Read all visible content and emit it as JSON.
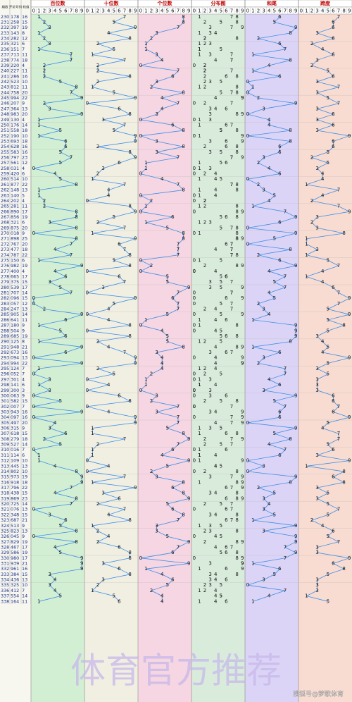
{
  "headers": {
    "issue": "期数",
    "draw": "开奖号码",
    "sum": "和值",
    "groups": [
      "百位数",
      "十位数",
      "个位数",
      "分布图",
      "和尾",
      "跨度"
    ]
  },
  "digits": [
    0,
    1,
    2,
    3,
    4,
    5,
    6,
    7,
    8,
    9
  ],
  "watermark": "体育官方推荐",
  "credit": "搜狐号@梦歌体育",
  "rows": [
    [
      230,
      "178",
      16,
      1,
      7,
      8,
      6,
      7
    ],
    [
      231,
      "258",
      15,
      2,
      5,
      8,
      5,
      6
    ],
    [
      232,
      "397",
      19,
      3,
      9,
      7,
      9,
      6
    ],
    [
      233,
      "143",
      8,
      1,
      4,
      3,
      8,
      3
    ],
    [
      234,
      "282",
      12,
      2,
      8,
      2,
      2,
      6
    ],
    [
      235,
      "321",
      6,
      3,
      2,
      1,
      6,
      2
    ],
    [
      236,
      "151",
      7,
      1,
      5,
      1,
      7,
      4
    ],
    [
      237,
      "713",
      11,
      7,
      1,
      3,
      1,
      6
    ],
    [
      238,
      "774",
      18,
      7,
      7,
      4,
      8,
      3
    ],
    [
      239,
      "220",
      4,
      2,
      2,
      0,
      4,
      2
    ],
    [
      240,
      "227",
      11,
      2,
      2,
      7,
      1,
      5
    ],
    [
      241,
      "286",
      16,
      2,
      8,
      6,
      6,
      6
    ],
    [
      242,
      "523",
      10,
      5,
      2,
      3,
      0,
      3
    ],
    [
      243,
      "812",
      11,
      8,
      1,
      2,
      1,
      7
    ],
    [
      244,
      "758",
      20,
      7,
      5,
      8,
      0,
      3
    ],
    [
      245,
      "994",
      22,
      9,
      9,
      4,
      2,
      5
    ],
    [
      246,
      "207",
      9,
      2,
      0,
      7,
      9,
      7
    ],
    [
      247,
      "364",
      13,
      3,
      6,
      4,
      3,
      3
    ],
    [
      248,
      "983",
      20,
      9,
      8,
      3,
      0,
      6
    ],
    [
      249,
      "130",
      4,
      1,
      3,
      0,
      4,
      3
    ],
    [
      250,
      "176",
      14,
      1,
      7,
      6,
      4,
      6
    ],
    [
      251,
      "558",
      18,
      5,
      5,
      8,
      8,
      3
    ],
    [
      252,
      "190",
      10,
      1,
      9,
      0,
      0,
      9
    ],
    [
      253,
      "693",
      18,
      6,
      9,
      3,
      8,
      6
    ],
    [
      254,
      "628",
      16,
      6,
      2,
      8,
      6,
      6
    ],
    [
      255,
      "583",
      16,
      5,
      8,
      3,
      6,
      5
    ],
    [
      256,
      "797",
      23,
      7,
      9,
      7,
      3,
      2
    ],
    [
      257,
      "561",
      12,
      5,
      6,
      1,
      2,
      5
    ],
    [
      258,
      "031",
      4,
      0,
      3,
      1,
      4,
      3
    ],
    [
      259,
      "420",
      6,
      4,
      2,
      0,
      6,
      4
    ],
    [
      260,
      "514",
      10,
      5,
      1,
      4,
      0,
      4
    ],
    [
      261,
      "877",
      22,
      8,
      7,
      7,
      2,
      1
    ],
    [
      262,
      "148",
      13,
      1,
      4,
      8,
      3,
      7
    ],
    [
      263,
      "140",
      5,
      1,
      4,
      0,
      5,
      4
    ],
    [
      264,
      "202",
      4,
      2,
      0,
      2,
      4,
      2
    ],
    [
      265,
      "281",
      11,
      2,
      8,
      1,
      1,
      7
    ],
    [
      266,
      "890",
      17,
      8,
      9,
      0,
      7,
      9
    ],
    [
      267,
      "856",
      19,
      8,
      5,
      6,
      9,
      3
    ],
    [
      268,
      "321",
      6,
      3,
      2,
      1,
      6,
      2
    ],
    [
      269,
      "875",
      20,
      8,
      7,
      5,
      0,
      3
    ],
    [
      270,
      "018",
      9,
      0,
      1,
      8,
      9,
      8
    ],
    [
      271,
      "898",
      25,
      8,
      9,
      8,
      5,
      1
    ],
    [
      272,
      "767",
      20,
      7,
      6,
      7,
      0,
      1
    ],
    [
      273,
      "477",
      18,
      4,
      7,
      7,
      8,
      3
    ],
    [
      274,
      "787",
      22,
      7,
      8,
      7,
      2,
      1
    ],
    [
      275,
      "150",
      6,
      1,
      5,
      0,
      6,
      5
    ],
    [
      276,
      "982",
      19,
      9,
      8,
      2,
      9,
      7
    ],
    [
      277,
      "400",
      4,
      4,
      0,
      0,
      4,
      4
    ],
    [
      278,
      "665",
      17,
      6,
      6,
      5,
      7,
      1
    ],
    [
      279,
      "375",
      15,
      3,
      7,
      5,
      5,
      4
    ],
    [
      280,
      "539",
      17,
      5,
      3,
      9,
      7,
      6
    ],
    [
      281,
      "707",
      14,
      7,
      0,
      7,
      4,
      7
    ],
    [
      282,
      "096",
      15,
      0,
      9,
      6,
      5,
      9
    ],
    [
      283,
      "057",
      12,
      0,
      5,
      7,
      2,
      7
    ],
    [
      284,
      "247",
      13,
      2,
      4,
      7,
      3,
      5
    ],
    [
      285,
      "905",
      14,
      9,
      0,
      5,
      4,
      9
    ],
    [
      286,
      "641",
      11,
      6,
      4,
      1,
      1,
      5
    ],
    [
      287,
      "180",
      9,
      1,
      8,
      0,
      9,
      8
    ],
    [
      288,
      "504",
      9,
      5,
      0,
      4,
      9,
      5
    ],
    [
      289,
      "685",
      19,
      6,
      8,
      5,
      9,
      3
    ],
    [
      290,
      "125",
      8,
      1,
      2,
      5,
      8,
      4
    ],
    [
      291,
      "948",
      21,
      9,
      4,
      8,
      1,
      5
    ],
    [
      292,
      "673",
      16,
      6,
      7,
      3,
      6,
      4
    ],
    [
      293,
      "094",
      13,
      0,
      9,
      4,
      3,
      9
    ],
    [
      294,
      "994",
      22,
      9,
      9,
      4,
      2,
      5
    ],
    [
      295,
      "124",
      7,
      1,
      2,
      4,
      7,
      3
    ],
    [
      296,
      "052",
      7,
      0,
      5,
      2,
      7,
      5
    ],
    [
      297,
      "301",
      4,
      3,
      0,
      1,
      4,
      3
    ],
    [
      298,
      "141",
      6,
      1,
      4,
      1,
      6,
      3
    ],
    [
      299,
      "300",
      3,
      3,
      0,
      0,
      3,
      3
    ],
    [
      300,
      "063",
      9,
      0,
      6,
      3,
      9,
      6
    ],
    [
      301,
      "582",
      15,
      5,
      8,
      2,
      5,
      6
    ],
    [
      302,
      "007",
      7,
      0,
      0,
      7,
      7,
      7
    ],
    [
      303,
      "943",
      16,
      9,
      4,
      3,
      6,
      6
    ],
    [
      304,
      "097",
      16,
      0,
      9,
      7,
      6,
      9
    ],
    [
      305,
      "497",
      20,
      4,
      9,
      7,
      0,
      5
    ],
    [
      306,
      "315",
      9,
      3,
      1,
      5,
      9,
      4
    ],
    [
      307,
      "618",
      15,
      6,
      1,
      8,
      5,
      7
    ],
    [
      308,
      "279",
      18,
      2,
      7,
      9,
      8,
      7
    ],
    [
      309,
      "527",
      14,
      5,
      2,
      7,
      4,
      5
    ],
    [
      310,
      "016",
      7,
      0,
      1,
      6,
      7,
      6
    ],
    [
      311,
      "114",
      6,
      1,
      1,
      4,
      6,
      3
    ],
    [
      312,
      "109",
      10,
      1,
      0,
      9,
      0,
      9
    ],
    [
      313,
      "445",
      13,
      4,
      4,
      5,
      3,
      1
    ],
    [
      314,
      "802",
      10,
      8,
      0,
      2,
      0,
      8
    ],
    [
      315,
      "973",
      19,
      9,
      7,
      3,
      9,
      6
    ],
    [
      316,
      "918",
      18,
      9,
      1,
      8,
      8,
      8
    ],
    [
      317,
      "796",
      22,
      7,
      9,
      6,
      2,
      3
    ],
    [
      318,
      "438",
      15,
      4,
      3,
      8,
      5,
      5
    ],
    [
      319,
      "869",
      23,
      8,
      6,
      9,
      3,
      3
    ],
    [
      320,
      "725",
      14,
      7,
      2,
      5,
      4,
      5
    ],
    [
      321,
      "076",
      13,
      0,
      7,
      6,
      3,
      7
    ],
    [
      322,
      "348",
      15,
      3,
      4,
      8,
      5,
      5
    ],
    [
      323,
      "687",
      21,
      6,
      8,
      7,
      1,
      2
    ],
    [
      324,
      "513",
      9,
      5,
      1,
      3,
      9,
      4
    ],
    [
      325,
      "823",
      13,
      8,
      2,
      3,
      3,
      6
    ],
    [
      326,
      "045",
      9,
      0,
      4,
      5,
      9,
      5
    ],
    [
      327,
      "829",
      19,
      8,
      2,
      9,
      9,
      7
    ],
    [
      328,
      "467",
      17,
      4,
      6,
      7,
      7,
      3
    ],
    [
      329,
      "586",
      19,
      5,
      8,
      6,
      9,
      3
    ],
    [
      330,
      "980",
      17,
      9,
      8,
      0,
      7,
      9
    ],
    [
      331,
      "939",
      21,
      9,
      3,
      9,
      1,
      6
    ],
    [
      332,
      "961",
      16,
      9,
      6,
      1,
      6,
      8
    ],
    [
      333,
      "384",
      15,
      3,
      8,
      4,
      5,
      5
    ],
    [
      334,
      "436",
      13,
      4,
      3,
      6,
      3,
      3
    ],
    [
      335,
      "325",
      10,
      3,
      2,
      5,
      0,
      3
    ],
    [
      336,
      "412",
      7,
      4,
      1,
      2,
      7,
      3
    ],
    [
      337,
      "554",
      14,
      5,
      5,
      4,
      4,
      1
    ],
    [
      338,
      "164",
      11,
      1,
      6,
      4,
      1,
      5
    ]
  ]
}
